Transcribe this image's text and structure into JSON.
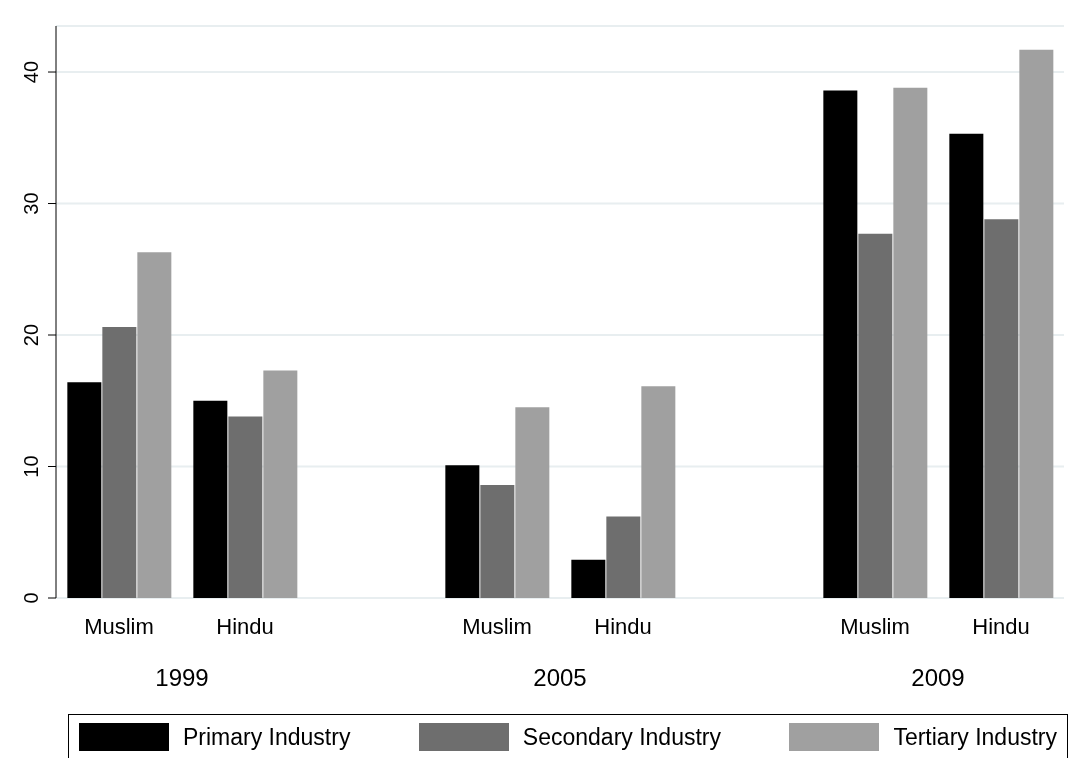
{
  "chart_data": {
    "type": "bar",
    "categories": [
      "Muslim",
      "Hindu",
      "Muslim",
      "Hindu",
      "Muslim",
      "Hindu"
    ],
    "annotations": [
      "1999",
      "2005",
      "2009"
    ],
    "series": [
      {
        "name": "Primary Industry",
        "color": "#000000",
        "values": [
          16.4,
          15.0,
          10.1,
          2.9,
          38.6,
          35.3
        ]
      },
      {
        "name": "Secondary Industry",
        "color": "#6e6e6e",
        "values": [
          20.6,
          13.8,
          8.6,
          6.2,
          27.7,
          28.8
        ]
      },
      {
        "name": "Tertiary Industry",
        "color": "#a0a0a0",
        "values": [
          26.3,
          17.3,
          14.5,
          16.1,
          38.8,
          41.7
        ]
      }
    ],
    "ylim": [
      0,
      43.5
    ],
    "yticks": [
      0,
      10,
      20,
      30,
      40
    ],
    "grid": "y",
    "legend": "bottom"
  }
}
